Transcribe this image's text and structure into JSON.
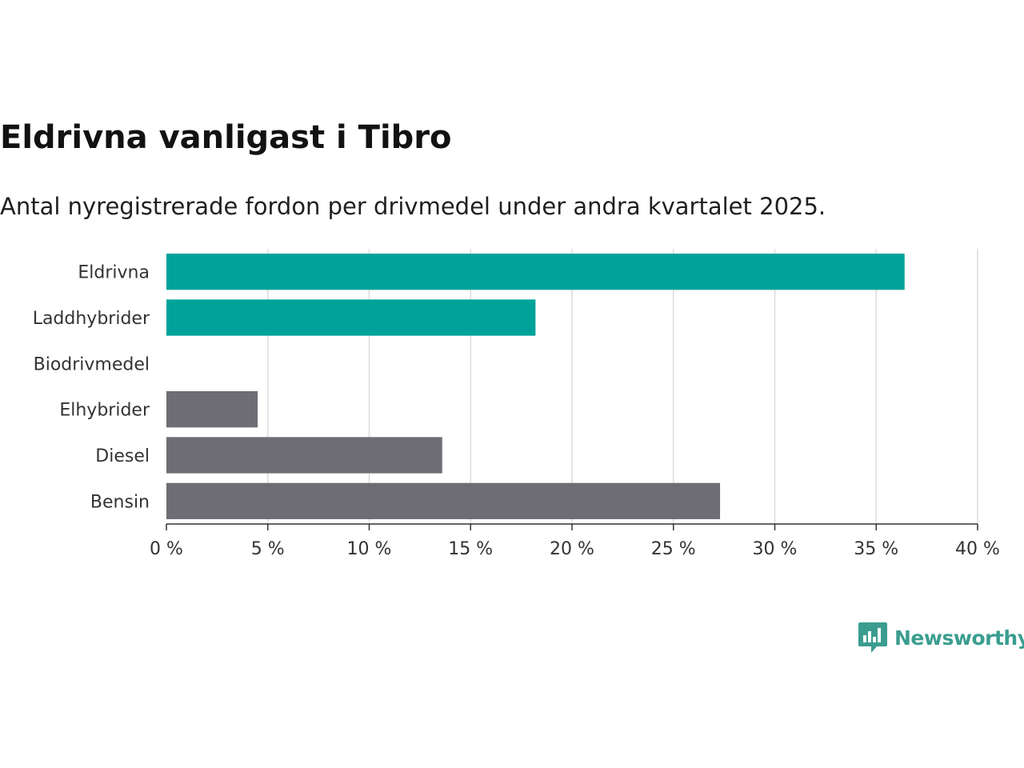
{
  "chart_data": {
    "type": "bar",
    "orientation": "horizontal",
    "title": "Eldrivna vanligast i Tibro",
    "subtitle": "Antal nyregistrerade fordon per drivmedel under andra kvartalet 2025.",
    "categories": [
      "Eldrivna",
      "Laddhybrider",
      "Biodrivmedel",
      "Elhybrider",
      "Diesel",
      "Bensin"
    ],
    "values": [
      36.4,
      18.2,
      0,
      4.5,
      13.6,
      27.3
    ],
    "bar_colors": [
      "#00a39a",
      "#00a39a",
      "#00a39a",
      "#6e6d74",
      "#6e6d74",
      "#6e6d74"
    ],
    "xlim": [
      0,
      40
    ],
    "xticks": [
      0,
      5,
      10,
      15,
      20,
      25,
      30,
      35,
      40
    ],
    "xtick_labels": [
      "0 %",
      "5 %",
      "10 %",
      "15 %",
      "20 %",
      "25 %",
      "30 %",
      "35 %",
      "40 %"
    ],
    "xlabel": "",
    "ylabel": "",
    "grid": "vertical",
    "legend": "none"
  },
  "branding": {
    "logo_text": "Newsworthy",
    "logo_color": "#3a9d8f"
  }
}
